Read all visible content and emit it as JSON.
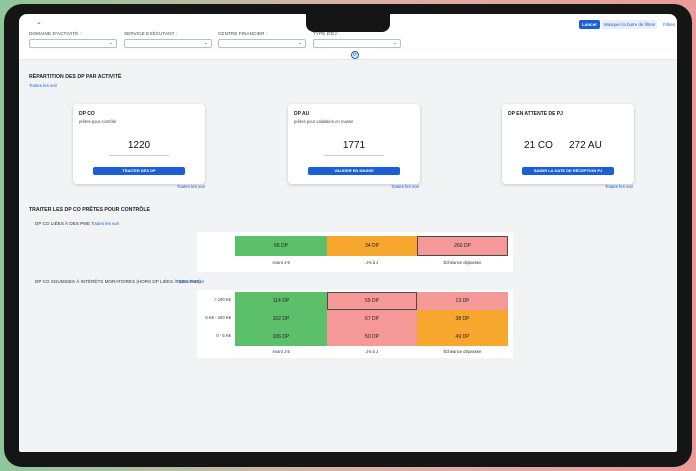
{
  "header": {
    "filters": [
      {
        "label": "DOMAINE D'ACTIVITÉ :"
      },
      {
        "label": "SERVICE EXÉCUTANT :"
      },
      {
        "label": "CENTRE FINANCIER :"
      },
      {
        "label": "TYPE D'EJ :"
      }
    ],
    "launch_label": "Lancer",
    "hide_filters_label": "Masquer la barre de filtres",
    "filters_link": "Filtres"
  },
  "repartition": {
    "title": "RÉPARTITION DES DP PAR ACTIVITÉ",
    "see_all": "Toutes les voir",
    "cards": [
      {
        "title": "DP CO",
        "subtitle": "prêtes pour contrôle",
        "value": "1220",
        "button": "TRAITER DES DP",
        "link": "Toutes les voir"
      },
      {
        "title": "DP AU",
        "subtitle": "prêtes pour validation en masse",
        "value": "1771",
        "button": "VALIDER EN MASSE",
        "link": "Toutes les voir"
      },
      {
        "title": "DP EN ATTENTE DE PJ",
        "subtitle": "",
        "value_co": "21 CO",
        "value_au": "272 AU",
        "button": "SAISIR LA DATE DE RÉCEPTION PJ",
        "link": "Toutes les voir"
      }
    ]
  },
  "traiter": {
    "title": "TRAITER LES DP CO PRÊTES POUR CONTRÔLE",
    "pme": {
      "title": "DP CO LIÉES À DES PME",
      "see_all": "Toutes les voir",
      "cells": [
        "66 DP",
        "34 DP",
        "260 DP"
      ],
      "columns": [
        "Avant J-5",
        "J-5 à J",
        "Échéance dépassée"
      ]
    },
    "interets": {
      "title": "DP CO SOUMISES À INTÉRÊTS MORATOIRES (hors DP liées à des PME)",
      "see_all": "Toutes les voir",
      "rows": [
        {
          "label": "> 100 K€",
          "cells": [
            "114 DP",
            "55 DP",
            "13 DP"
          ]
        },
        {
          "label": "5 K€ - 100 K€",
          "cells": [
            "102 DP",
            "67 DP",
            "38 DP"
          ]
        },
        {
          "label": "0 - 5 K€",
          "cells": [
            "106 DP",
            "50 DP",
            "49 DP"
          ]
        }
      ],
      "columns": [
        "Avant J-5",
        "J-5 à J",
        "Échéance dépassée"
      ]
    }
  },
  "colors": {
    "green": "#5cbf6a",
    "orange": "#f7a72e",
    "red": "#f59898",
    "accent": "#1a5fd6"
  },
  "icons": {
    "topbar_toggle": "chevron-down-icon",
    "sync": "sync-icon",
    "select_caret": "chevron-down-icon"
  }
}
